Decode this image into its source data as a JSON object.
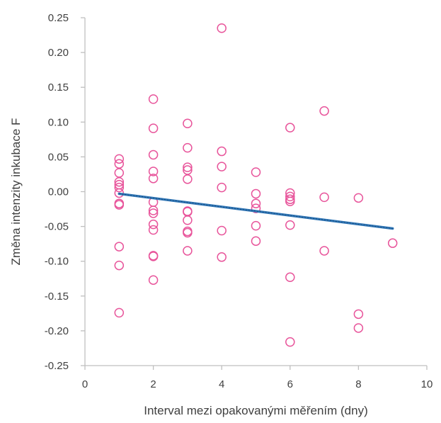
{
  "chart_data": {
    "type": "scatter",
    "xlabel": "Interval mezi opakovanými měřením (dny)",
    "ylabel": "Změna intenzity inkubace F",
    "xlim": [
      0,
      10
    ],
    "ylim": [
      -0.25,
      0.25
    ],
    "x_ticks": [
      0,
      2,
      4,
      6,
      8,
      10
    ],
    "y_ticks": [
      0.25,
      0.2,
      0.15,
      0.1,
      0.05,
      0.0,
      -0.05,
      -0.1,
      -0.15,
      -0.2,
      -0.25
    ],
    "x_tick_labels": [
      "0",
      "2",
      "4",
      "6",
      "8",
      "10"
    ],
    "y_tick_labels": [
      "0.25",
      "0.20",
      "0.15",
      "0.10",
      "0.05",
      "0.00",
      "-0.05",
      "-0.10",
      "-0.15",
      "-0.20",
      "-0.25"
    ],
    "grid": false,
    "marker_color": "#e8559b",
    "trendline_color": "#2e75b6",
    "trendline": {
      "x": [
        1,
        9
      ],
      "y": [
        -0.003,
        -0.053
      ]
    },
    "points": [
      [
        1,
        0.047
      ],
      [
        1,
        0.04
      ],
      [
        1,
        0.027
      ],
      [
        1,
        0.014
      ],
      [
        1,
        0.01
      ],
      [
        1,
        0.006
      ],
      [
        1,
        -0.002
      ],
      [
        1,
        -0.017
      ],
      [
        1,
        -0.019
      ],
      [
        1,
        -0.079
      ],
      [
        1,
        -0.106
      ],
      [
        1,
        -0.174
      ],
      [
        2,
        0.133
      ],
      [
        2,
        0.091
      ],
      [
        2,
        0.053
      ],
      [
        2,
        0.029
      ],
      [
        2,
        0.019
      ],
      [
        2,
        -0.015
      ],
      [
        2,
        -0.027
      ],
      [
        2,
        -0.031
      ],
      [
        2,
        -0.047
      ],
      [
        2,
        -0.055
      ],
      [
        2,
        -0.092
      ],
      [
        2,
        -0.093
      ],
      [
        2,
        -0.127
      ],
      [
        3,
        0.098
      ],
      [
        3,
        0.063
      ],
      [
        3,
        0.035
      ],
      [
        3,
        0.031
      ],
      [
        3,
        0.018
      ],
      [
        3,
        -0.028
      ],
      [
        3,
        -0.029
      ],
      [
        3,
        -0.041
      ],
      [
        3,
        -0.057
      ],
      [
        3,
        -0.059
      ],
      [
        3,
        -0.085
      ],
      [
        4,
        0.235
      ],
      [
        4,
        0.058
      ],
      [
        4,
        0.036
      ],
      [
        4,
        0.006
      ],
      [
        4,
        -0.056
      ],
      [
        4,
        -0.094
      ],
      [
        5,
        0.028
      ],
      [
        5,
        -0.003
      ],
      [
        5,
        -0.017
      ],
      [
        5,
        -0.024
      ],
      [
        5,
        -0.049
      ],
      [
        5,
        -0.071
      ],
      [
        6,
        0.092
      ],
      [
        6,
        -0.002
      ],
      [
        6,
        -0.007
      ],
      [
        6,
        -0.011
      ],
      [
        6,
        -0.014
      ],
      [
        6,
        -0.048
      ],
      [
        6,
        -0.123
      ],
      [
        6,
        -0.216
      ],
      [
        7,
        0.116
      ],
      [
        7,
        -0.008
      ],
      [
        7,
        -0.085
      ],
      [
        8,
        -0.009
      ],
      [
        8,
        -0.176
      ],
      [
        8,
        -0.196
      ],
      [
        9,
        -0.074
      ]
    ]
  }
}
